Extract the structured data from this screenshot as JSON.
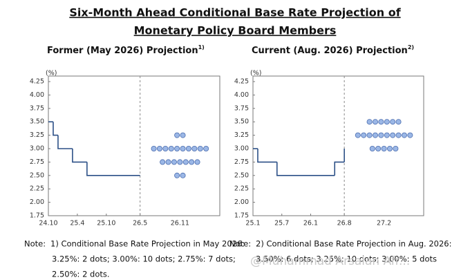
{
  "title": [
    "Six-Month Ahead Conditional Base Rate Projection of",
    "Monetary Policy Board Members"
  ],
  "notes": [
    {
      "prefix": "Note:",
      "lines": [
        "1) Conditional Base Rate Projection in May 2026:",
        "3.25%: 2 dots; 3.00%: 10 dots; 2.75%: 7 dots;",
        "2.50%: 2 dots."
      ]
    },
    {
      "prefix": "Note:",
      "lines": [
        "2) Conditional Base Rate Projection in Aug. 2026:",
        "3.50%: 6 dots; 3.25%: 10 dots; 3.00%: 5 dots"
      ]
    }
  ],
  "watermark": "@Muhammad Arsalan Afr...",
  "chart_data": [
    {
      "type": "step-dot",
      "title": "Former (May 2026) Projection",
      "title_note": "1)",
      "y_unit": "(%)",
      "ylim": [
        1.75,
        4.25
      ],
      "yticks": [
        4.25,
        {
          "value": 4,
          "label": "4.00"
        },
        3.75,
        {
          "value": 3.5,
          "label": "3.50"
        },
        3.25,
        {
          "value": 3,
          "label": "3.00"
        },
        2.75,
        {
          "value": 2.5,
          "label": "2.50"
        },
        2.25,
        {
          "value": 2,
          "label": "2.00"
        },
        1.75
      ],
      "xlim": [
        "2024-10",
        "2026-05"
      ],
      "xticks": [
        {
          "value": "2024-10",
          "label": "24.10"
        },
        {
          "value": "2025-04",
          "label": "25.4"
        },
        {
          "value": "2025-10",
          "label": "25.10"
        },
        {
          "value": "2026-05",
          "label": "26.5"
        }
      ],
      "x": [
        "2024-10",
        "2024-11",
        "2024-12",
        "2025-03",
        "2025-06",
        "2026-05"
      ],
      "values": [
        3.5,
        3.25,
        3.0,
        2.75,
        2.5,
        2.5
      ],
      "color": "#2b4f86",
      "dots_label": "26.11",
      "dot_values": [
        3.25,
        3.0,
        2.75,
        2.5
      ],
      "dot_counts": [
        2,
        10,
        7,
        2
      ],
      "dot_color": "#9bb7e6"
    },
    {
      "type": "step-dot",
      "title": "Current (Aug. 2026) Projection",
      "title_note": "2)",
      "y_unit": "(%)",
      "ylim": [
        1.75,
        4.25
      ],
      "yticks": [
        4.25,
        {
          "value": 4,
          "label": "4.00"
        },
        3.75,
        {
          "value": 3.5,
          "label": "3.50"
        },
        3.25,
        {
          "value": 3,
          "label": "3.00"
        },
        2.75,
        {
          "value": 2.5,
          "label": "2.50"
        },
        2.25,
        {
          "value": 2,
          "label": "2.00"
        },
        1.75
      ],
      "xlim": [
        "2025-01",
        "2026-08"
      ],
      "xticks": [
        {
          "value": "2025-01",
          "label": "25.1"
        },
        {
          "value": "2025-07",
          "label": "25.7"
        },
        {
          "value": "2026-01",
          "label": "26.1"
        },
        {
          "value": "2026-08",
          "label": "26.8"
        }
      ],
      "x": [
        "2025-01",
        "2025-02",
        "2025-06",
        "2026-06",
        "2026-08"
      ],
      "values": [
        3.0,
        2.75,
        2.5,
        2.75,
        3.0
      ],
      "color": "#2b4f86",
      "dots_label": "27.2",
      "dot_values": [
        3.5,
        3.25,
        3.0
      ],
      "dot_counts": [
        6,
        10,
        5
      ],
      "dot_color": "#9bb7e6"
    }
  ]
}
